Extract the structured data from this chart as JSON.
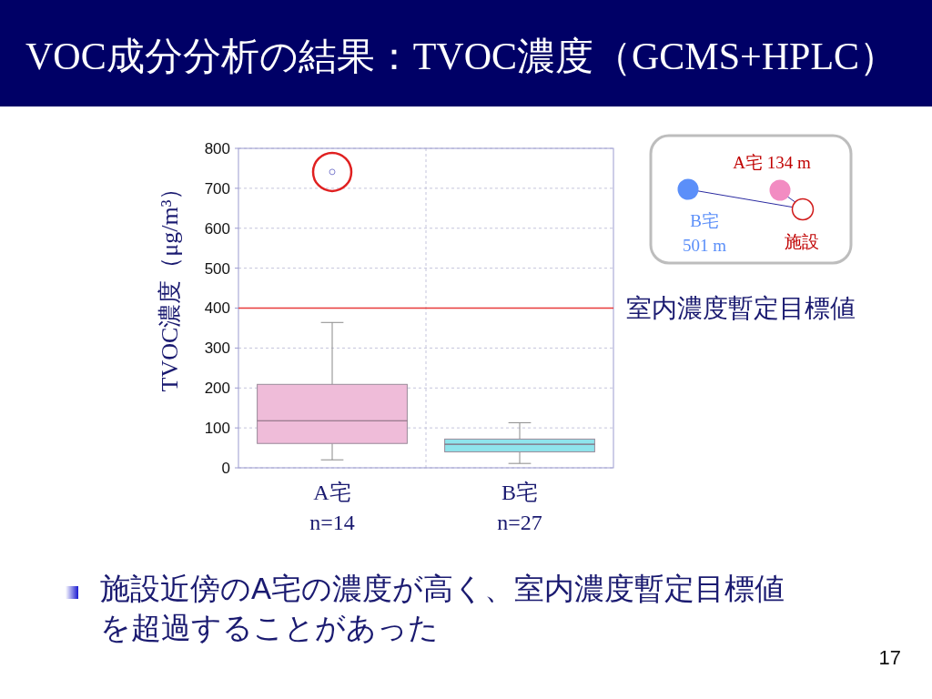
{
  "chart_data": {
    "type": "box",
    "title": "VOC成分分析の結果：TVOC濃度（GCMS+HPLC）",
    "ylabel": "TVOC濃度（μg/m³）",
    "categories": [
      "A宅\nn=14",
      "B宅\nn=27"
    ],
    "boxes": [
      {
        "low": 20,
        "q1": 61,
        "median": 118,
        "q3": 209,
        "high": 364,
        "outliers": [
          741
        ]
      },
      {
        "low": 11,
        "q1": 40,
        "median": 59,
        "q3": 72,
        "high": 113
      }
    ],
    "colors": [
      "#efbcd9",
      "#8fe4ec"
    ],
    "ylim": [
      0,
      800
    ],
    "yticks": [
      0,
      100,
      200,
      300,
      400,
      500,
      600,
      700,
      800
    ],
    "grid": true,
    "ref_lines": [
      {
        "axis": "y",
        "value": 400,
        "label": "室内濃度暫定目標値",
        "color": "#e83a3a"
      }
    ],
    "annotations": [
      "施設近傍のA宅の濃度が高く、室内濃度暫定目標値を超過することがあった",
      "A宅 134 m",
      "B宅\n501 m",
      "施設",
      "17"
    ]
  }
}
